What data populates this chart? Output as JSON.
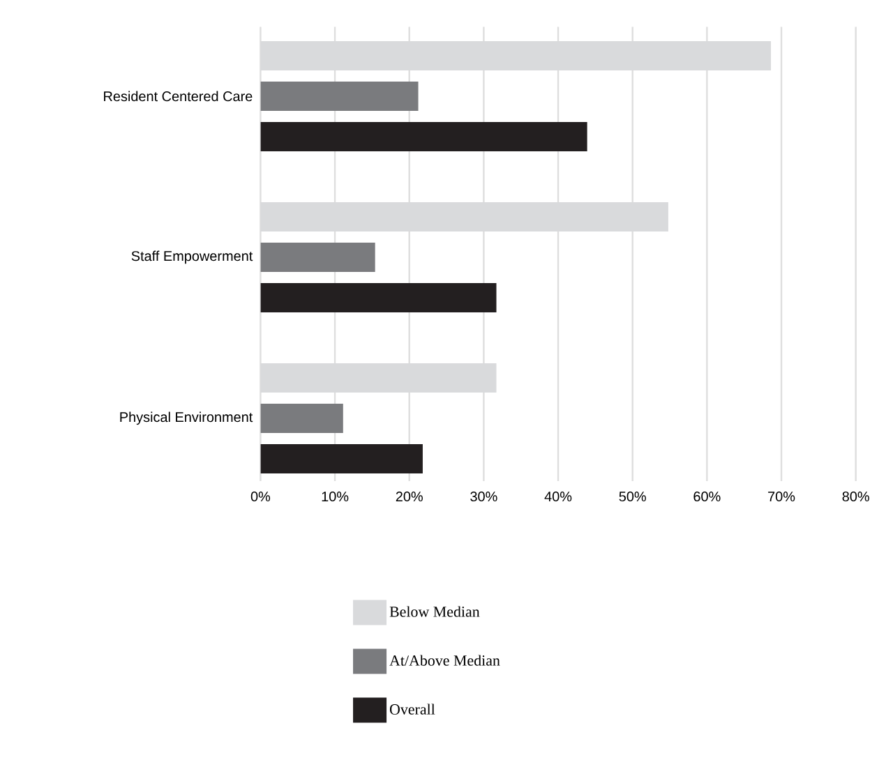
{
  "chart_data": {
    "type": "bar",
    "orientation": "horizontal",
    "categories": [
      "Resident Centered Care",
      "Staff Empowerment",
      "Physical Environment"
    ],
    "series": [
      {
        "name": "Below Median",
        "color": "#d9dadc",
        "values": [
          68.6,
          54.8,
          31.7
        ]
      },
      {
        "name": "At/Above Median",
        "color": "#7a7b7e",
        "values": [
          21.2,
          15.4,
          11.1
        ]
      },
      {
        "name": "Overall",
        "color": "#231f20",
        "values": [
          43.9,
          31.7,
          21.8
        ]
      }
    ],
    "xlim": [
      0,
      80
    ],
    "xticks": [
      {
        "value": 0,
        "label": "0%"
      },
      {
        "value": 10,
        "label": "10%"
      },
      {
        "value": 20,
        "label": "20%"
      },
      {
        "value": 30,
        "label": "30%"
      },
      {
        "value": 40,
        "label": "40%"
      },
      {
        "value": 50,
        "label": "50%"
      },
      {
        "value": 60,
        "label": "60%"
      },
      {
        "value": 70,
        "label": "70%"
      },
      {
        "value": 80,
        "label": "80%"
      }
    ],
    "grid": "x",
    "legend": "bottom"
  }
}
